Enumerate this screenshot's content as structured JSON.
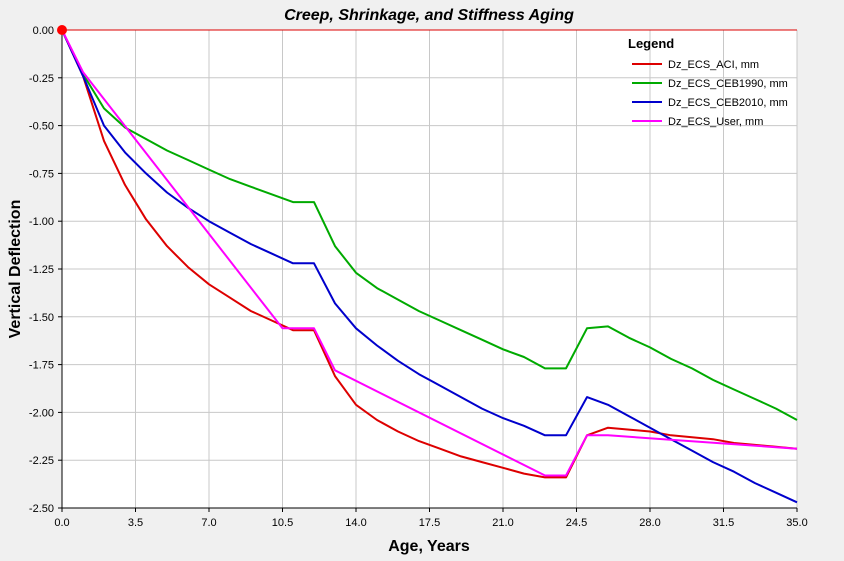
{
  "chart_data": {
    "type": "line",
    "title": "Creep, Shrinkage, and Stiffness Aging",
    "xlabel": "Age, Years",
    "ylabel": "Vertical Deflection",
    "xlim": [
      0,
      35
    ],
    "ylim": [
      -2.5,
      0
    ],
    "x_ticks": [
      "0.0",
      "3.5",
      "7.0",
      "10.5",
      "14.0",
      "17.5",
      "21.0",
      "24.5",
      "28.0",
      "31.5",
      "35.0"
    ],
    "y_ticks": [
      "0.00",
      "-0.25",
      "-0.50",
      "-0.75",
      "-1.00",
      "-1.25",
      "-1.50",
      "-1.75",
      "-2.00",
      "-2.25",
      "-2.50"
    ],
    "grid": true,
    "legend": {
      "title": "Legend",
      "placement": "top-right"
    },
    "origin_marker_color": "#ff0000",
    "series": [
      {
        "name": "Dz_ECS_ACI, mm",
        "color": "#dd0000",
        "x": [
          0,
          1,
          2,
          3,
          4,
          5,
          6,
          7,
          8,
          9,
          10,
          11,
          12,
          13,
          14,
          15,
          16,
          17,
          18,
          19,
          20,
          21,
          22,
          23,
          24,
          25,
          26,
          27,
          28,
          29,
          30,
          31,
          32,
          33,
          34,
          35
        ],
        "y": [
          0,
          -0.24,
          -0.58,
          -0.81,
          -0.99,
          -1.13,
          -1.24,
          -1.33,
          -1.4,
          -1.47,
          -1.52,
          -1.57,
          -1.57,
          -1.81,
          -1.96,
          -2.04,
          -2.1,
          -2.15,
          -2.19,
          -2.23,
          -2.26,
          -2.29,
          -2.32,
          -2.34,
          -2.34,
          -2.12,
          -2.08,
          -2.09,
          -2.1,
          -2.12,
          -2.13,
          -2.14,
          -2.16,
          -2.17,
          -2.18,
          -2.19
        ]
      },
      {
        "name": "Dz_ECS_CEB1990, mm",
        "color": "#00aa00",
        "x": [
          0,
          1,
          2,
          3,
          4,
          5,
          6,
          7,
          8,
          9,
          10,
          11,
          12,
          13,
          14,
          15,
          16,
          17,
          18,
          19,
          20,
          21,
          22,
          23,
          24,
          25,
          26,
          27,
          28,
          29,
          30,
          31,
          32,
          33,
          34,
          35
        ],
        "y": [
          0,
          -0.23,
          -0.41,
          -0.51,
          -0.57,
          -0.63,
          -0.68,
          -0.73,
          -0.78,
          -0.82,
          -0.86,
          -0.9,
          -0.9,
          -1.13,
          -1.27,
          -1.35,
          -1.41,
          -1.47,
          -1.52,
          -1.57,
          -1.62,
          -1.67,
          -1.71,
          -1.77,
          -1.77,
          -1.56,
          -1.55,
          -1.61,
          -1.66,
          -1.72,
          -1.77,
          -1.83,
          -1.88,
          -1.93,
          -1.98,
          -2.04
        ]
      },
      {
        "name": "Dz_ECS_CEB2010, mm",
        "color": "#0000cc",
        "x": [
          0,
          1,
          2,
          3,
          4,
          5,
          6,
          7,
          8,
          9,
          10,
          11,
          12,
          13,
          14,
          15,
          16,
          17,
          18,
          19,
          20,
          21,
          22,
          23,
          24,
          25,
          26,
          27,
          28,
          29,
          30,
          31,
          32,
          33,
          34,
          35
        ],
        "y": [
          0,
          -0.24,
          -0.5,
          -0.64,
          -0.75,
          -0.85,
          -0.93,
          -1.0,
          -1.06,
          -1.12,
          -1.17,
          -1.22,
          -1.22,
          -1.43,
          -1.56,
          -1.65,
          -1.73,
          -1.8,
          -1.86,
          -1.92,
          -1.98,
          -2.03,
          -2.07,
          -2.12,
          -2.12,
          -1.92,
          -1.96,
          -2.02,
          -2.08,
          -2.14,
          -2.2,
          -2.26,
          -2.31,
          -2.37,
          -2.42,
          -2.47
        ]
      },
      {
        "name": "Dz_ECS_User, mm",
        "color": "#ff00ff",
        "x": [
          0,
          1,
          10.5,
          12,
          13,
          23,
          24,
          25,
          26,
          35
        ],
        "y": [
          0,
          -0.22,
          -1.56,
          -1.56,
          -1.78,
          -2.33,
          -2.33,
          -2.12,
          -2.12,
          -2.19
        ]
      }
    ]
  }
}
